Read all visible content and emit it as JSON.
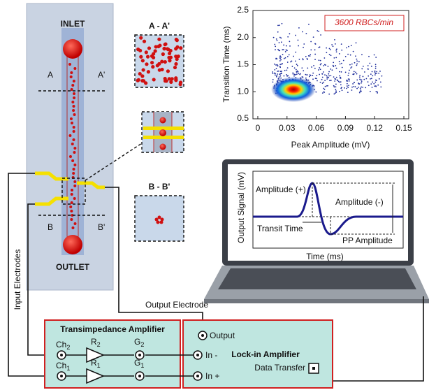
{
  "chip": {
    "inlet": "INLET",
    "outlet": "OUTLET",
    "section_a": {
      "left": "A",
      "right": "A'"
    },
    "section_b": {
      "left": "B",
      "right": "B'"
    }
  },
  "cross_sections": {
    "a": "A - A'",
    "b": "B - B'"
  },
  "scatter_plot": {
    "annotation": "3600 RBCs/min",
    "x_label": "Peak Amplitude (mV)",
    "y_label": "Transition Time (ms)",
    "xlim": [
      -0.005,
      0.155
    ],
    "ylim": [
      0.5,
      2.5
    ],
    "xticks": [
      0,
      0.03,
      0.06,
      0.09,
      0.12,
      0.15
    ],
    "yticks": [
      0.5,
      {
        "value": 1,
        "label": "1.0"
      },
      1.5,
      {
        "value": 2,
        "label": "2.0"
      },
      2.5
    ]
  },
  "signal_plot": {
    "y_label": "Output Signal (mV)",
    "x_label": "Time (ms)",
    "amp_plus": "Amplitude (+)",
    "amp_minus": "Amplitude (-)",
    "transit": "Transit Time",
    "pp": "PP Amplitude"
  },
  "electrodes": {
    "input": "Input Electrodes",
    "output": "Output Electrode"
  },
  "transimpedance": {
    "title": "Transimpedance Amplifier",
    "channels": [
      {
        "base": "Ch",
        "sub": "2"
      },
      {
        "base": "Ch",
        "sub": "1"
      }
    ],
    "resistors": [
      {
        "base": "R",
        "sub": "2"
      },
      {
        "base": "R",
        "sub": "1"
      }
    ],
    "gains": [
      {
        "base": "G",
        "sub": "2"
      },
      {
        "base": "G",
        "sub": "1"
      }
    ]
  },
  "lockin": {
    "title": "Lock-in Amplifier",
    "output": "Output",
    "in_minus": "In -",
    "in_plus": "In +",
    "data_transfer": "Data Transfer"
  }
}
